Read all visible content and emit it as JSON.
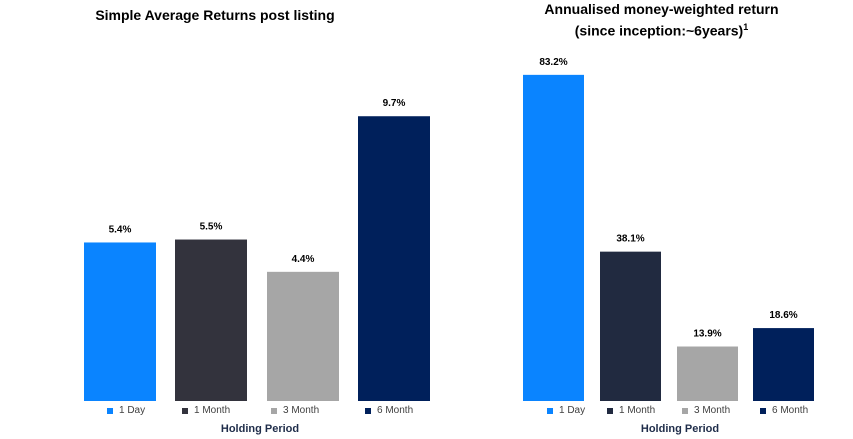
{
  "charts": [
    {
      "id": "left",
      "title": "Simple Average Returns post listing",
      "xlabel": "Holding Period",
      "legend": [
        {
          "label": "1 Day",
          "color": "#0a84ff"
        },
        {
          "label": "1 Month",
          "color": "#33333d"
        },
        {
          "label": "3 Month",
          "color": "#a6a6a6"
        },
        {
          "label": "6 Month",
          "color": "#00205b"
        }
      ]
    },
    {
      "id": "right",
      "title": "Annualised money-weighted return",
      "subtitle": "(since inception:~6years)",
      "subtitle_sup": "1",
      "xlabel": "Holding Period",
      "legend": [
        {
          "label": "1 Day",
          "color": "#0a84ff"
        },
        {
          "label": "1 Month",
          "color": "#212a40"
        },
        {
          "label": "3 Month",
          "color": "#a6a6a6"
        },
        {
          "label": "6 Month",
          "color": "#00205b"
        }
      ]
    }
  ],
  "chart_data": [
    {
      "type": "bar",
      "title": "Simple Average Returns post listing",
      "xlabel": "Holding Period",
      "ylabel": "",
      "categories": [
        "1 Day",
        "1 Month",
        "3 Month",
        "6 Month"
      ],
      "values": [
        5.4,
        5.5,
        4.4,
        9.7
      ],
      "data_labels": [
        "5.4%",
        "5.5%",
        "4.4%",
        "9.7%"
      ],
      "colors": [
        "#0a84ff",
        "#33333d",
        "#a6a6a6",
        "#00205b"
      ],
      "ylim": [
        0,
        10.9
      ],
      "grid": false,
      "legend_position": "bottom"
    },
    {
      "type": "bar",
      "title": "Annualised money-weighted return (since inception:~6years)1",
      "xlabel": "Holding Period",
      "ylabel": "",
      "categories": [
        "1 Day",
        "1 Month",
        "3 Month",
        "6 Month"
      ],
      "values": [
        83.2,
        38.1,
        13.9,
        18.6
      ],
      "data_labels": [
        "83.2%",
        "38.1%",
        "13.9%",
        "18.6%"
      ],
      "colors": [
        "#0a84ff",
        "#212a40",
        "#a6a6a6",
        "#00205b"
      ],
      "ylim": [
        0,
        100
      ],
      "grid": false,
      "legend_position": "bottom"
    }
  ]
}
